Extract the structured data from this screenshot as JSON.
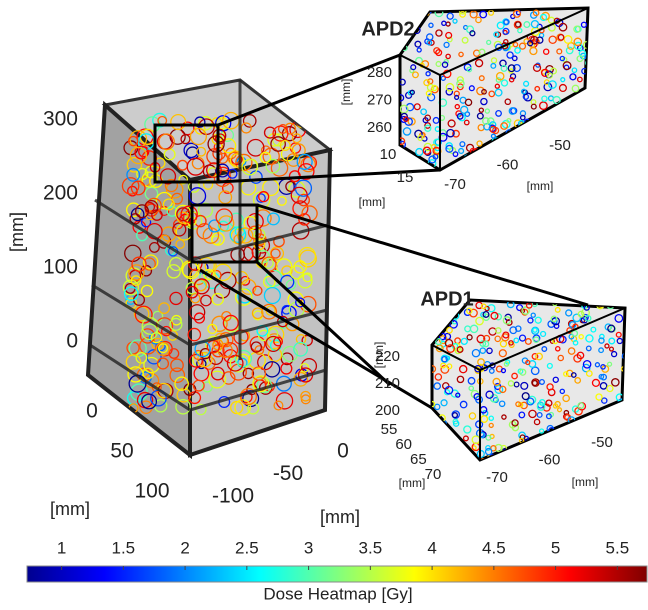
{
  "figure": {
    "main": {
      "z_axis": {
        "lim": [
          0,
          300
        ],
        "ticks": [
          0,
          100,
          200,
          300
        ],
        "label": "[mm]"
      },
      "depth_axis": {
        "lim": [
          0,
          100
        ],
        "ticks": [
          0,
          50,
          100
        ],
        "label": "[mm]"
      },
      "x_axis": {
        "lim": [
          0,
          -100
        ],
        "ticks": [
          0,
          -50,
          -100
        ],
        "label": "[mm]"
      }
    },
    "insets": [
      {
        "title": "APD2",
        "z_axis": {
          "lim": [
            260,
            280
          ],
          "ticks": [
            260,
            270,
            280
          ],
          "label": "[mm]"
        },
        "depth_axis": {
          "lim": [
            10,
            15
          ],
          "ticks": [
            10,
            15
          ],
          "label": "[mm]"
        },
        "x_axis": {
          "lim": [
            -70,
            -50
          ],
          "ticks": [
            -70,
            -60,
            -50
          ],
          "label": "[mm]"
        }
      },
      {
        "title": "APD1",
        "z_axis": {
          "lim": [
            200,
            220
          ],
          "ticks": [
            200,
            210,
            220
          ],
          "label": "[mm]"
        },
        "depth_axis": {
          "lim": [
            55,
            70
          ],
          "ticks": [
            55,
            60,
            65,
            70
          ],
          "label": "[mm]"
        },
        "x_axis": {
          "lim": [
            -70,
            -50
          ],
          "ticks": [
            -70,
            -60,
            -50
          ],
          "label": "[mm]"
        }
      }
    ],
    "colorbar": {
      "lim": [
        0.72,
        5.74
      ],
      "ticks": [
        1,
        1.5,
        2,
        2.5,
        3,
        3.5,
        4,
        4.5,
        5,
        5.5
      ],
      "label": "Dose Heatmap [Gy]"
    }
  }
}
